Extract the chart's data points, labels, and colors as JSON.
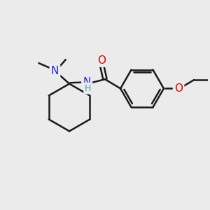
{
  "background_color": "#ebebeb",
  "bond_color": "#1a1a1a",
  "bond_width": 1.8,
  "atom_colors": {
    "N": "#2020ff",
    "O": "#e00000",
    "H": "#2aaaa0"
  },
  "font_size": 10,
  "fig_size": [
    3.0,
    3.0
  ],
  "dpi": 100
}
